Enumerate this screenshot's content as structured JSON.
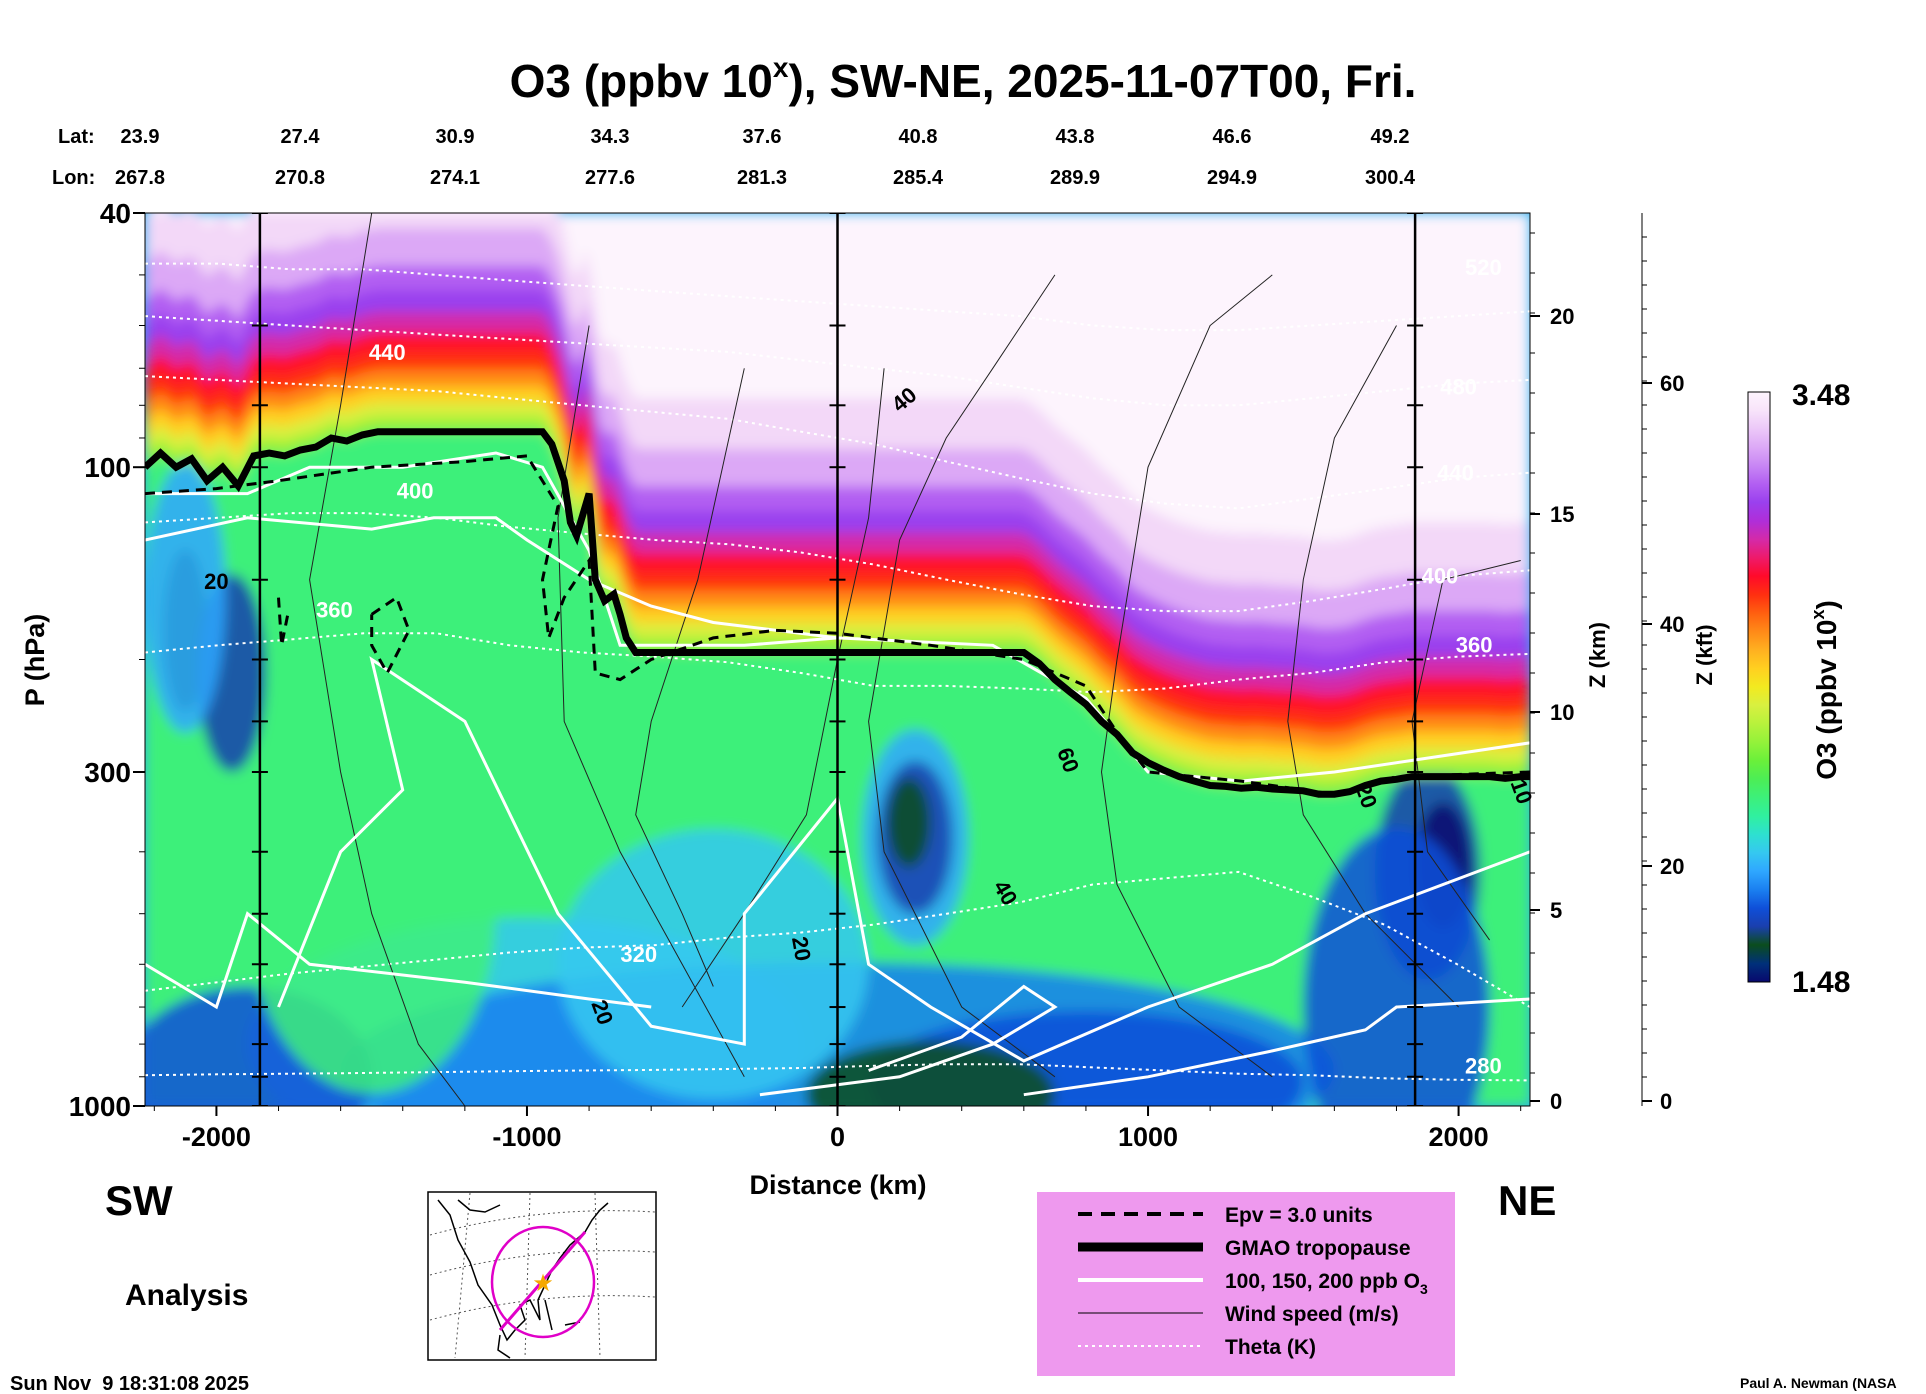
{
  "chart_data": {
    "type": "heatmap",
    "title_main": "O3 (ppbv 10",
    "title_sup": "x",
    "title_rest": "), SW-NE, 2025-11-07T00, Fri.",
    "lat_label": "Lat:",
    "lon_label": "Lon:",
    "lat": [
      "23.9",
      "27.4",
      "30.9",
      "34.3",
      "37.6",
      "40.8",
      "43.8",
      "46.6",
      "49.2"
    ],
    "lon": [
      "267.8",
      "270.8",
      "274.1",
      "277.6",
      "281.3",
      "285.4",
      "289.9",
      "294.9",
      "300.4"
    ],
    "xlabel": "Distance (km)",
    "ylabel": "P (hPa)",
    "z_km_label": "Z (km)",
    "z_kft_label": "Z (kft)",
    "x_ticks": [
      -2000,
      -1000,
      0,
      1000,
      2000
    ],
    "x_tick_labels": [
      "-2000",
      "-1000",
      "0",
      "1000",
      "2000"
    ],
    "xlim": [
      -2230,
      2230
    ],
    "y_scale": "log",
    "ylim": [
      1000,
      40
    ],
    "p_tick_labels": [
      "40",
      "100",
      "300",
      "1000"
    ],
    "z_km_ticks": [
      "20",
      "15",
      "10",
      "5",
      "0"
    ],
    "z_kft_ticks": [
      "60",
      "40",
      "20",
      "0"
    ],
    "colorbar": {
      "label_main": "O3 (ppbv 10",
      "label_sup": "x",
      "label_rest": ")",
      "max_label": "3.48",
      "min_label": "1.48",
      "min": 1.48,
      "max": 3.48,
      "colors": [
        "#08086e",
        "#00307a",
        "#0b4d1d",
        "#1a3fae",
        "#0f4fd8",
        "#1a7ff0",
        "#2fa7ff",
        "#35c8f0",
        "#2ee0d0",
        "#30f0a0",
        "#3df07a",
        "#4cee55",
        "#6af03a",
        "#93f23a",
        "#b8f23c",
        "#d8f040",
        "#f2ea20",
        "#ffd020",
        "#ffb020",
        "#ff8a18",
        "#ff6010",
        "#ff3010",
        "#ff0a2a",
        "#ee1a6a",
        "#d42aa8",
        "#b02ed8",
        "#9a40ee",
        "#b25ff2",
        "#c886f4",
        "#dca8f6",
        "#ecc8f8",
        "#f8e4fa",
        "#fdf4fd"
      ]
    },
    "direction_left": "SW",
    "direction_right": "NE",
    "analysis_label": "Analysis",
    "timestamp": "Sun Nov  9 18:31:08 2025",
    "credit": "Paul A. Newman (NASA",
    "legend": [
      {
        "label": "Epv = 3.0 units",
        "style": "dashed"
      },
      {
        "label": "GMAO tropopause",
        "style": "thick"
      },
      {
        "label": "100, 150, 200 ppb O",
        "sub": "3",
        "style": "white"
      },
      {
        "label": "Wind speed (m/s)",
        "style": "thin"
      },
      {
        "label": "Theta (K)",
        "style": "dotted"
      }
    ],
    "legend_bg": "#ee99ee",
    "tropopause": {
      "x": [
        -2230,
        -2180,
        -2130,
        -2080,
        -2030,
        -1980,
        -1930,
        -1880,
        -1830,
        -1780,
        -1730,
        -1680,
        -1630,
        -1580,
        -1530,
        -1480,
        -1400,
        -1300,
        -1200,
        -1100,
        -1000,
        -950,
        -920,
        -880,
        -860,
        -840,
        -800,
        -780,
        -750,
        -720,
        -700,
        -680,
        -650,
        -600,
        -500,
        -400,
        -300,
        -200,
        -100,
        0,
        100,
        200,
        300,
        400,
        500,
        600,
        650,
        700,
        750,
        800,
        850,
        900,
        950,
        1000,
        1050,
        1100,
        1150,
        1200,
        1250,
        1300,
        1350,
        1400,
        1450,
        1500,
        1550,
        1600,
        1650,
        1700,
        1750,
        1800,
        1850,
        1900,
        1950,
        2000,
        2050,
        2100,
        2150,
        2200,
        2230
      ],
      "p": [
        100,
        95,
        100,
        97,
        105,
        100,
        107,
        96,
        95,
        96,
        94,
        93,
        90,
        91,
        89,
        88,
        88,
        88,
        88,
        88,
        88,
        88,
        92,
        105,
        122,
        128,
        110,
        150,
        162,
        158,
        170,
        185,
        195,
        195,
        195,
        195,
        195,
        195,
        195,
        195,
        195,
        195,
        195,
        195,
        195,
        195,
        203,
        215,
        225,
        235,
        250,
        262,
        280,
        290,
        298,
        305,
        310,
        315,
        316,
        318,
        317,
        319,
        320,
        321,
        325,
        325,
        322,
        315,
        310,
        308,
        305,
        305,
        305,
        305,
        305,
        305,
        307,
        305,
        305
      ]
    },
    "theta": [
      {
        "label": "280",
        "p": [
          895,
          892,
          890,
          888,
          885,
          882,
          880,
          878,
          875,
          872,
          865,
          860,
          860,
          870,
          880,
          890,
          895,
          905,
          910,
          912
        ],
        "label_x": 2080,
        "label_p": 890
      },
      {
        "label": "320",
        "p": [
          660,
          640,
          620,
          605,
          590,
          575,
          565,
          560,
          545,
          535,
          520,
          500,
          480,
          450,
          440,
          430,
          470,
          520,
          600,
          700
        ],
        "label_x": -640,
        "label_p": 595
      },
      {
        "label": "360",
        "p": [
          195,
          190,
          186,
          182,
          182,
          190,
          195,
          198,
          202,
          210,
          220,
          220,
          222,
          225,
          222,
          215,
          210,
          202,
          198,
          196
        ],
        "label_x": 2050,
        "label_p": 195
      },
      {
        "label": "400",
        "p": [
          122,
          120,
          118,
          118,
          120,
          124,
          127,
          130,
          132,
          136,
          142,
          150,
          158,
          165,
          168,
          168,
          162,
          155,
          148,
          145
        ],
        "label_x": 1940,
        "label_p": 152
      },
      {
        "label": "440",
        "p": [
          72,
          73,
          74,
          75,
          76,
          78,
          80,
          82,
          84,
          88,
          92,
          98,
          104,
          110,
          114,
          116,
          112,
          108,
          104,
          102
        ],
        "label_x": 1990,
        "label_p": 105
      },
      {
        "label": "480",
        "p": [
          58,
          59,
          60,
          61,
          62,
          63,
          64,
          65,
          66,
          68,
          70,
          72,
          75,
          78,
          80,
          80,
          78,
          76,
          74,
          73
        ],
        "label_x": 2000,
        "label_p": 77
      },
      {
        "label": "520",
        "p": [
          48,
          48,
          49,
          49,
          50,
          51,
          52,
          53,
          54,
          55,
          56,
          57,
          58,
          60,
          61,
          61,
          60,
          59,
          58,
          57
        ],
        "label_x": 2080,
        "label_p": 50
      }
    ],
    "wind_labels": [
      "20",
      "20",
      "40",
      "60",
      "40",
      "20",
      "20",
      "10"
    ],
    "white_labels": [
      "440",
      "400",
      "360"
    ]
  }
}
